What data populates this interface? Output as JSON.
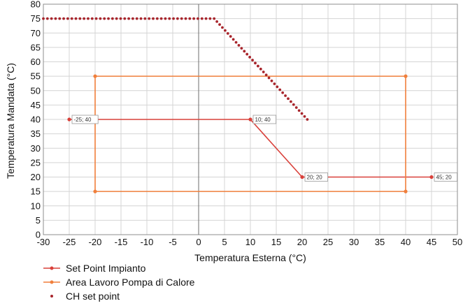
{
  "chart_data": {
    "type": "line",
    "title": "",
    "xlabel": "Temperatura Esterna (°C)",
    "ylabel": "Temperatura Mandata (°C)",
    "xlim": [
      -30,
      50
    ],
    "ylim": [
      0,
      80
    ],
    "xticks": [
      -30,
      -25,
      -20,
      -15,
      -10,
      -5,
      0,
      5,
      10,
      15,
      20,
      25,
      30,
      35,
      40,
      45,
      50
    ],
    "yticks": [
      0,
      5,
      10,
      15,
      20,
      25,
      30,
      35,
      40,
      45,
      50,
      55,
      60,
      65,
      70,
      75,
      80
    ],
    "grid": true,
    "legend_position": "bottom-left",
    "series": [
      {
        "name": "Set Point Impianto",
        "color": "#d9403a",
        "style": "line-marker",
        "points": [
          [
            -25,
            40
          ],
          [
            10,
            40
          ],
          [
            20,
            20
          ],
          [
            45,
            20
          ]
        ],
        "data_labels": [
          "-25; 40",
          "10; 40",
          "20; 20",
          "45; 20"
        ]
      },
      {
        "name": "Area Lavoro Pompa di Calore",
        "color": "#f07f3c",
        "style": "line-marker",
        "points": [
          [
            -20,
            15
          ],
          [
            -20,
            55
          ],
          [
            40,
            55
          ],
          [
            40,
            15
          ],
          [
            -20,
            15
          ]
        ]
      },
      {
        "name": "CH set point",
        "color": "#a8252c",
        "style": "dots",
        "points": [
          [
            -30,
            75
          ],
          [
            3,
            75
          ],
          [
            21,
            40
          ]
        ]
      }
    ]
  }
}
